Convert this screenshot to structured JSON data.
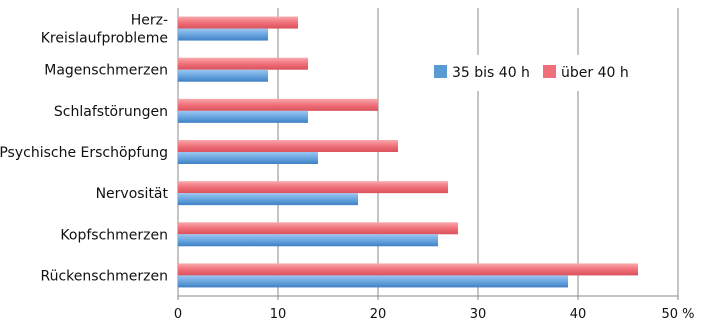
{
  "chart_data": {
    "type": "bar",
    "orientation": "horizontal",
    "categories": [
      [
        "Herz-",
        "Kreislaufprobleme"
      ],
      [
        "Magenschmerzen"
      ],
      [
        "Schlafstörungen"
      ],
      [
        "Psychische Erschöpfung"
      ],
      [
        "Nervosität"
      ],
      [
        "Kopfschmerzen"
      ],
      [
        "Rückenschmerzen"
      ]
    ],
    "series": [
      {
        "name": "35 bis 40 h",
        "color": "#5b9bd5",
        "values": [
          9,
          9,
          13,
          14,
          18,
          26,
          39
        ]
      },
      {
        "name": "über 40 h",
        "color": "#f0707a",
        "values": [
          12,
          13,
          20,
          22,
          27,
          28,
          46
        ]
      }
    ],
    "xlim": [
      0,
      50
    ],
    "xticks": [
      0,
      10,
      20,
      30,
      40,
      50
    ],
    "xtick_labels": [
      "0",
      "10",
      "20",
      "30",
      "40",
      "50 %"
    ],
    "grid": true,
    "legend_position": "top-right"
  }
}
